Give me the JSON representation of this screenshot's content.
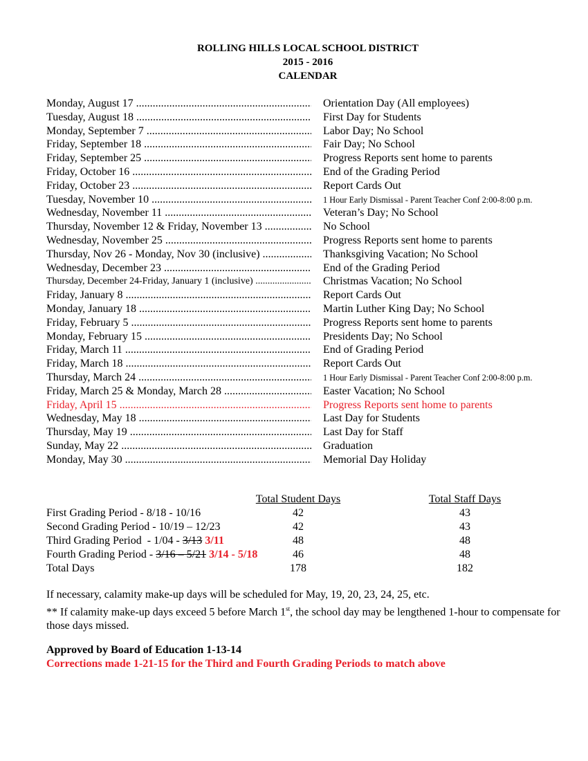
{
  "header": {
    "district": "ROLLING HILLS LOCAL SCHOOL DISTRICT",
    "year": "2015 - 2016",
    "title": "CALENDAR"
  },
  "events": [
    {
      "date": "Monday, August 17",
      "desc": "Orientation Day (All employees)"
    },
    {
      "date": "Tuesday, August 18",
      "desc": "First Day for Students"
    },
    {
      "date": "Monday, September 7",
      "desc": "Labor Day; No School"
    },
    {
      "date": "Friday, September 18",
      "desc": "Fair Day; No School"
    },
    {
      "date": "Friday, September 25",
      "desc": "Progress Reports sent home to parents"
    },
    {
      "date": "Friday, October 16",
      "desc": "End of the Grading Period"
    },
    {
      "date": "Friday, October 23",
      "desc": "Report Cards Out"
    },
    {
      "date": "Tuesday, November 10",
      "desc": "1 Hour Early Dismissal - Parent Teacher Conf  2:00-8:00 p.m.",
      "small": true
    },
    {
      "date": "Wednesday, November 11",
      "desc": "Veteran’s Day; No School"
    },
    {
      "date": "Thursday, November 12 & Friday, November 13",
      "desc": "No School"
    },
    {
      "date": "Wednesday, November 25",
      "desc": "Progress Reports sent home to parents"
    },
    {
      "date": "Thursday, Nov 26 - Monday, Nov 30 (inclusive)",
      "desc": "Thanksgiving Vacation; No School"
    },
    {
      "date": "Wednesday, December 23",
      "desc": "End of the Grading Period"
    },
    {
      "date": "Thursday, December 24-Friday, January 1 (inclusive)",
      "desc": "Christmas Vacation; No School",
      "smalldate": true
    },
    {
      "date": "Friday, January 8",
      "desc": "Report Cards Out"
    },
    {
      "date": "Monday, January 18",
      "desc": "Martin Luther King Day; No School"
    },
    {
      "date": "Friday, February 5",
      "desc": "Progress Reports sent home to parents"
    },
    {
      "date": "Monday, February 15",
      "desc": "Presidents Day; No School"
    },
    {
      "date": "Friday, March 11",
      "desc": "End of Grading Period"
    },
    {
      "date": "Friday, March 18",
      "desc": "Report Cards Out"
    },
    {
      "date": "Thursday, March 24",
      "desc": "1 Hour Early Dismissal - Parent Teacher Conf  2:00-8:00 p.m.",
      "small": true
    },
    {
      "date": "Friday, March 25 & Monday, March 28",
      "desc": "Easter Vacation; No School"
    },
    {
      "date": "Friday, April 15",
      "desc": "Progress Reports sent home to parents",
      "red": true
    },
    {
      "date": "Wednesday, May 18",
      "desc": "Last Day for Students"
    },
    {
      "date": "Thursday, May 19",
      "desc": "Last Day for Staff"
    },
    {
      "date": "Sunday, May 22",
      "desc": "Graduation"
    },
    {
      "date": "Monday, May 30",
      "desc": "Memorial Day Holiday"
    }
  ],
  "totals": {
    "student_header": "Total Student Days",
    "staff_header": "Total Staff Days",
    "rows": [
      {
        "label": "First Grading Period - 8/18 - 10/16",
        "student": "42",
        "staff": "43"
      },
      {
        "label": "Second Grading Period - 10/19 – 12/23",
        "student": "42",
        "staff": "43"
      },
      {
        "label": "Third Grading Period  - 1/04 - ",
        "struck": "3/13",
        "correction": "3/11",
        "student": "48",
        "staff": "48"
      },
      {
        "label": "Fourth Grading Period - ",
        "struck": "3/16 – 5/21",
        "correction": "3/14 - 5/18",
        "student": "46",
        "staff": "48"
      },
      {
        "label": "Total Days",
        "student": "178",
        "staff": "182"
      }
    ]
  },
  "notes": {
    "calamity": "If necessary, calamity make-up days will be scheduled for May, 19, 20, 23, 24, 25, etc.",
    "lengthen_a": "** If calamity make-up days exceed 5 before March 1",
    "lengthen_sup": "st",
    "lengthen_b": ", the school day may be lengthened 1-hour to compensate for those days missed.",
    "approved": "Approved by Board of Education 1-13-14",
    "corrections": "Corrections made 1-21-15 for the Third and Fourth Grading Periods to match above"
  },
  "colors": {
    "correction_red": "#e8202a"
  }
}
